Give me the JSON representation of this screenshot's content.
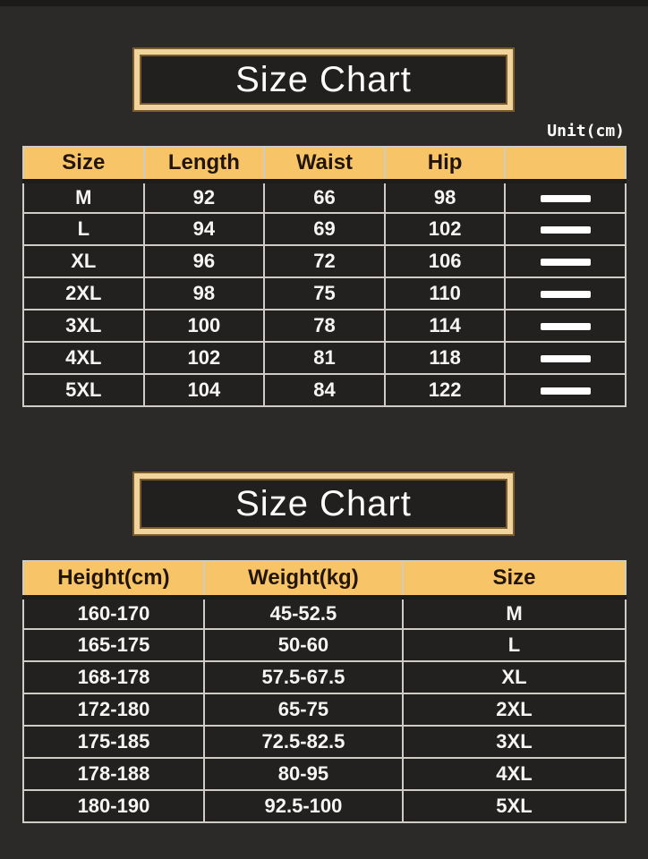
{
  "colors": {
    "background": "#2b2a28",
    "accent_gold": "#f7c568",
    "frame_cream": "#f0d49c",
    "frame_line": "#7a5c2e",
    "grid_line": "#cfccc7",
    "cell_background": "#232120",
    "text_light": "#f5f5f3",
    "text_dark": "#221507"
  },
  "chart_data": [
    {
      "type": "table",
      "title": "Size Chart",
      "unit_note": "Unit(cm)",
      "columns": [
        "Size",
        "Length",
        "Waist",
        "Hip",
        ""
      ],
      "rows": [
        [
          "M",
          "92",
          "66",
          "98",
          "—"
        ],
        [
          "L",
          "94",
          "69",
          "102",
          "—"
        ],
        [
          "XL",
          "96",
          "72",
          "106",
          "—"
        ],
        [
          "2XL",
          "98",
          "75",
          "110",
          "—"
        ],
        [
          "3XL",
          "100",
          "78",
          "114",
          "—"
        ],
        [
          "4XL",
          "102",
          "81",
          "118",
          "—"
        ],
        [
          "5XL",
          "104",
          "84",
          "122",
          "—"
        ]
      ]
    },
    {
      "type": "table",
      "title": "Size Chart",
      "columns": [
        "Height(cm)",
        "Weight(kg)",
        "Size"
      ],
      "rows": [
        [
          "160-170",
          "45-52.5",
          "M"
        ],
        [
          "165-175",
          "50-60",
          "L"
        ],
        [
          "168-178",
          "57.5-67.5",
          "XL"
        ],
        [
          "172-180",
          "65-75",
          "2XL"
        ],
        [
          "175-185",
          "72.5-82.5",
          "3XL"
        ],
        [
          "178-188",
          "80-95",
          "4XL"
        ],
        [
          "180-190",
          "92.5-100",
          "5XL"
        ]
      ]
    }
  ]
}
